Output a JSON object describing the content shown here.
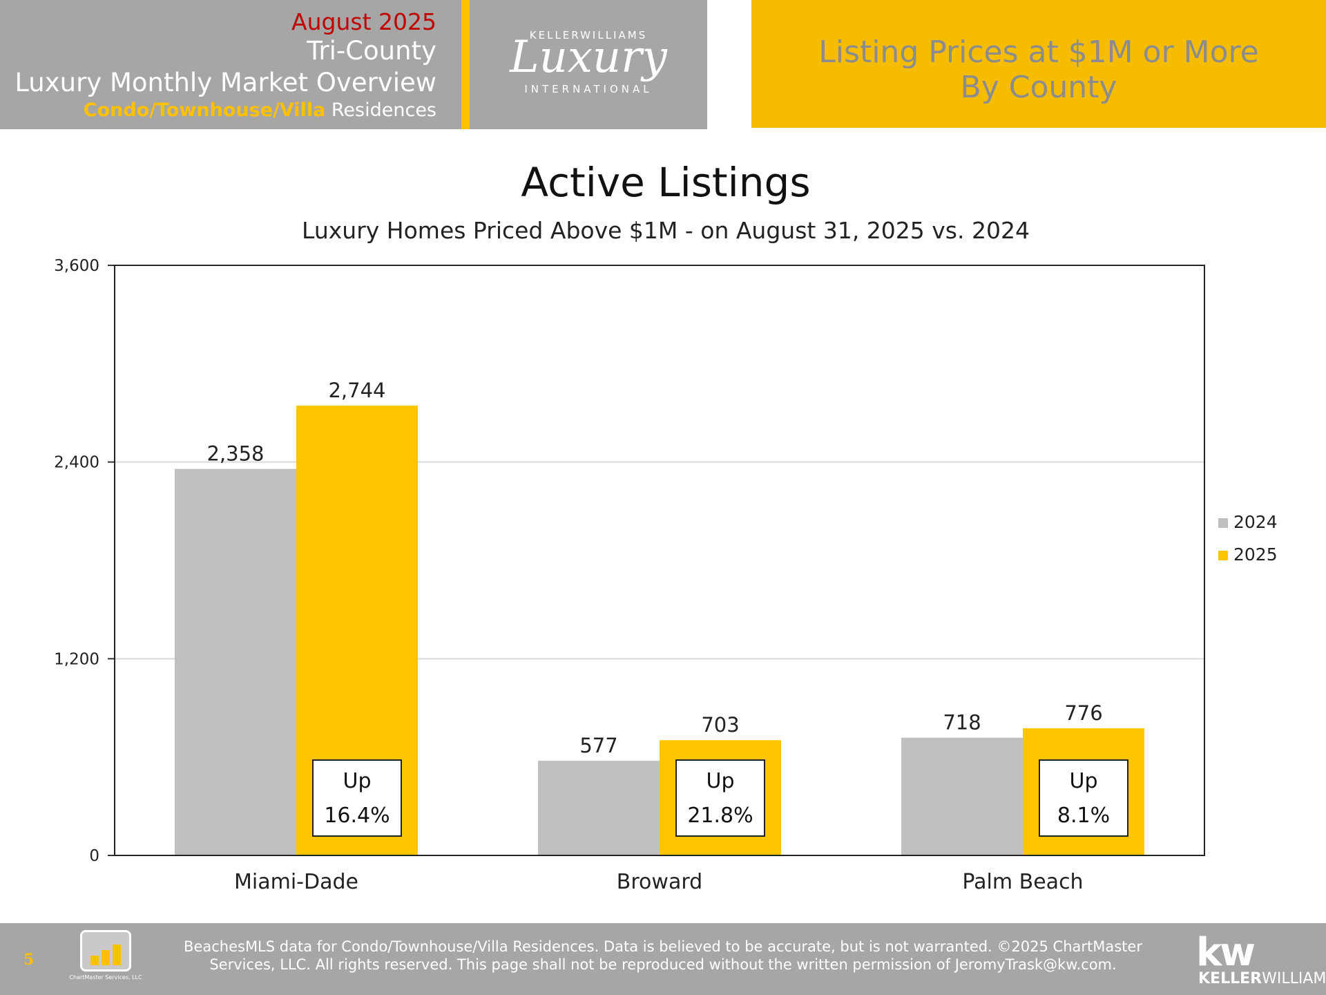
{
  "header": {
    "month": "August 2025",
    "region": "Tri-County",
    "report": "Luxury Monthly Market Overview",
    "segment_highlight": "Condo/Townhouse/Villa",
    "segment_rest": " Residences",
    "logo": {
      "top": "KELLERWILLIAMS",
      "script": "Luxury",
      "bottom": "INTERNATIONAL"
    },
    "right_line1": "Listing Prices at $1M or More",
    "right_line2": "By County"
  },
  "chart_data": {
    "type": "bar",
    "title": "Active Listings",
    "subtitle": "Luxury Homes Priced Above $1M - on August 31,  2025 vs. 2024",
    "categories": [
      "Miami-Dade",
      "Broward",
      "Palm Beach"
    ],
    "series": [
      {
        "name": "2024",
        "values": [
          2358,
          577,
          718
        ],
        "labels": [
          "2,358",
          "577",
          "718"
        ],
        "color": "#bfbfbf"
      },
      {
        "name": "2025",
        "values": [
          2744,
          703,
          776
        ],
        "labels": [
          "2,744",
          "703",
          "776"
        ],
        "color": "#ffc600"
      }
    ],
    "annotations": [
      {
        "line1": "Up",
        "line2": "16.4%"
      },
      {
        "line1": "Up",
        "line2": "21.8%"
      },
      {
        "line1": "Up",
        "line2": "8.1%"
      }
    ],
    "ylim": [
      0,
      3600
    ],
    "yticks": [
      0,
      1200,
      2400,
      3600
    ],
    "ytick_labels": [
      "0",
      "1,200",
      "2,400",
      "3,600"
    ],
    "xlabel": "",
    "ylabel": "",
    "grid": true,
    "legend_position": "right"
  },
  "footer": {
    "page": "5",
    "chartmaster_logo_text": "ChartMaster Services, LLC",
    "disclaimer1": "BeachesMLS data for Condo/Townhouse/Villa Residences.  Data is believed to be accurate, but is not warranted.   ©2025  ChartMaster",
    "disclaimer2": "Services, LLC.  All rights reserved. This page shall not be reproduced without the written permission of JeromyTrask@kw.com.",
    "kw_mark": "kw",
    "kw_name1": "KELLER",
    "kw_name2": "WILLIAMS."
  }
}
